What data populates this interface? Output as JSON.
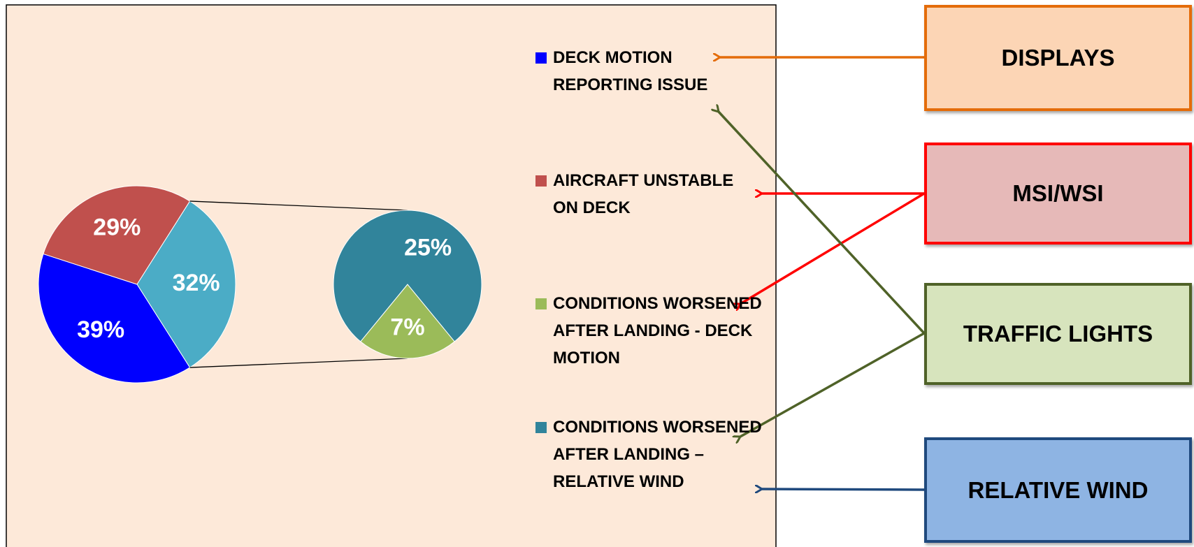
{
  "chart_data": {
    "type": "pie-of-pie",
    "categories": [
      "DECK MOTION REPORTING ISSUE",
      "AIRCRAFT UNSTABLE ON DECK",
      "CONDITIONS WORSENED AFTER LANDING - DECK MOTION",
      "CONDITIONS WORSENED AFTER LANDING – RELATIVE WIND"
    ],
    "values": [
      39,
      29,
      7,
      25
    ],
    "value_labels": [
      "39%",
      "29%",
      "7%",
      "25%"
    ],
    "colors": [
      "#0000ff",
      "#c0504d",
      "#9bbb59",
      "#31849b"
    ],
    "secondary": [
      false,
      false,
      true,
      true
    ],
    "other_value": 32,
    "other_label": "32%",
    "other_color": "#4bacc6"
  },
  "boxes": [
    {
      "label": "DISPLAYS"
    },
    {
      "label": "MSI/WSI"
    },
    {
      "label": "TRAFFIC LIGHTS"
    },
    {
      "label": "RELATIVE WIND"
    }
  ]
}
